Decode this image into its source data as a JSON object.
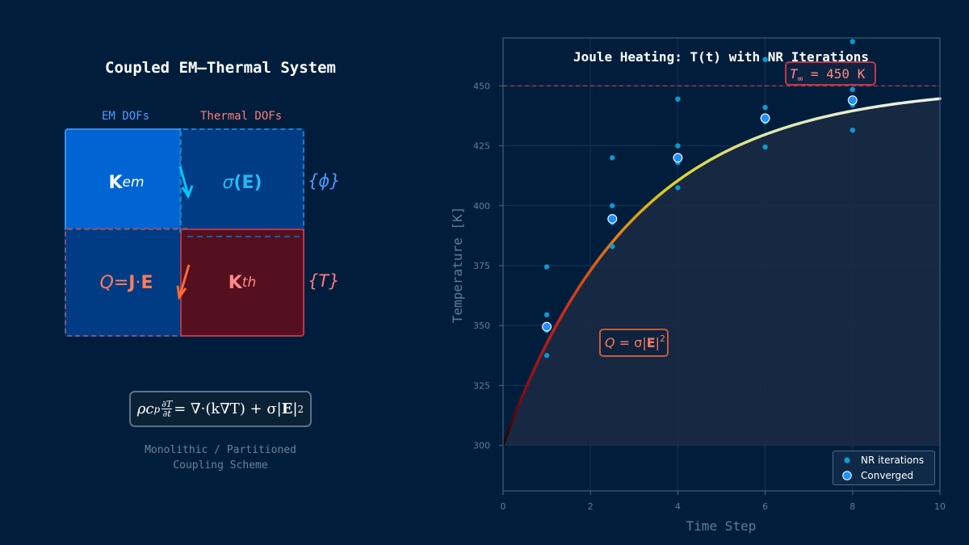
{
  "left_panel": {
    "title": "Coupled EM–Thermal System",
    "col_labels": {
      "em": "EM DOFs",
      "thermal": "Thermal DOFs"
    },
    "blocks": {
      "k_em": {
        "main": "K",
        "sub": "em"
      },
      "sigma": {
        "sym": "σ",
        "arg": "(E)"
      },
      "joule": {
        "q": "Q",
        "eq": " = ",
        "j": "J",
        "dot": "·",
        "e": "E"
      },
      "k_th": {
        "main": "K",
        "sub": "th"
      }
    },
    "vectors": {
      "phi": "{ϕ}",
      "t": "{T}"
    },
    "equation": {
      "lhs": "ρc",
      "lhs_sub": "p",
      "frac_num": "∂T",
      "frac_den": "∂t",
      "rhs": " = ∇·(k∇T) + σ|",
      "bold": "E",
      "tail": "|",
      "sup": "2"
    },
    "caption_line1": "Monolithic / Partitioned",
    "caption_line2": "Coupling Scheme",
    "colors": {
      "em": "#4a9cff",
      "thermal": "#ff7b7b",
      "arrow_em": "#00c8ff",
      "arrow_th": "#ff6a35"
    }
  },
  "chart_data": {
    "type": "scatter",
    "title": "Joule Heating: T(t) with NR Iterations",
    "xlabel": "Time Step",
    "ylabel": "Temperature [K]",
    "xlim": [
      0,
      10
    ],
    "ylim": [
      281,
      470
    ],
    "x_ticks": [
      0,
      2,
      4,
      6,
      8,
      10
    ],
    "y_ticks": [
      300,
      325,
      350,
      375,
      400,
      425,
      450
    ],
    "grid": true,
    "legend_position": "bottom-right",
    "asymptote": {
      "value": 450,
      "label": "T∞ = 450 K",
      "label_main": "T",
      "label_sub": "∞",
      "label_rest": " = 450 K"
    },
    "curve": {
      "T0": 300,
      "T_inf": 450,
      "tau": 3.0,
      "x_range": [
        0,
        10
      ]
    },
    "annotation": {
      "q": "Q",
      "eq": " = σ|",
      "bold": "E",
      "tail": "|",
      "sup": "2"
    },
    "series": [
      {
        "name": "NR iterations",
        "points": [
          {
            "x": 1,
            "y": 374.5
          },
          {
            "x": 1,
            "y": 354.5
          },
          {
            "x": 1,
            "y": 348
          },
          {
            "x": 1,
            "y": 337.5
          },
          {
            "x": 2.5,
            "y": 420
          },
          {
            "x": 2.5,
            "y": 400
          },
          {
            "x": 2.5,
            "y": 393
          },
          {
            "x": 2.5,
            "y": 383
          },
          {
            "x": 4,
            "y": 444.5
          },
          {
            "x": 4,
            "y": 425
          },
          {
            "x": 4,
            "y": 418
          },
          {
            "x": 4,
            "y": 407.5
          },
          {
            "x": 6,
            "y": 461
          },
          {
            "x": 6,
            "y": 441
          },
          {
            "x": 6,
            "y": 435
          },
          {
            "x": 6,
            "y": 424.5
          },
          {
            "x": 8,
            "y": 468.5
          },
          {
            "x": 8,
            "y": 448.5
          },
          {
            "x": 8,
            "y": 442
          },
          {
            "x": 8,
            "y": 431.5
          }
        ]
      },
      {
        "name": "Converged",
        "points": [
          {
            "x": 1,
            "y": 349.5
          },
          {
            "x": 2.5,
            "y": 394.5
          },
          {
            "x": 4,
            "y": 420
          },
          {
            "x": 6,
            "y": 436.5
          },
          {
            "x": 8,
            "y": 444
          }
        ]
      }
    ],
    "colors": {
      "bg": "#001e3c",
      "axis": "#4a6a89",
      "tick": "#5f7c99",
      "nr": "#0d9fd8",
      "converged": "#1e90ff",
      "asymptote": "#c0374a"
    }
  }
}
